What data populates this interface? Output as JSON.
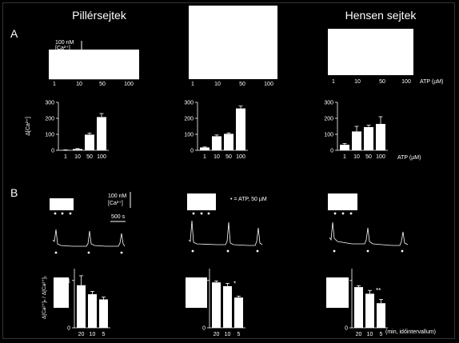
{
  "titles": {
    "col1": "Pillérsejtek",
    "col3": "Hensen sejtek"
  },
  "panels": {
    "a": "A",
    "b": "B"
  },
  "scale_a": {
    "amount": "100 nM",
    "unit": "[Ca²⁺]"
  },
  "scale_b": {
    "amount": "100 nM",
    "unit": "[Ca²⁺]",
    "time": "500 s"
  },
  "atp_note": "• = ATP, 50 µM",
  "atp_axis_label": "ATP (µM)",
  "trace_doses": [
    "1",
    "10",
    "50",
    "100"
  ],
  "ylabel_a": "Δ[Ca²⁺]",
  "ylabel_b": "Δ[Ca²⁺]ₙ / Δ[Ca²⁺]₁",
  "interval_label": "(min, időintervallum)",
  "chart_data": [
    {
      "type": "bar",
      "categories": [
        "1",
        "10",
        "50",
        "100"
      ],
      "values": [
        2,
        8,
        98,
        208
      ],
      "errors": [
        1,
        3,
        10,
        22
      ],
      "ylim": [
        0,
        300
      ],
      "yticks": [
        0,
        100,
        200,
        300
      ]
    },
    {
      "type": "bar",
      "categories": [
        "1",
        "10",
        "50",
        "100"
      ],
      "values": [
        18,
        88,
        103,
        262
      ],
      "errors": [
        3,
        8,
        6,
        15
      ],
      "ylim": [
        0,
        300
      ],
      "yticks": [
        0,
        100,
        200,
        300
      ]
    },
    {
      "type": "bar",
      "categories": [
        "1",
        "10",
        "50",
        "100"
      ],
      "values": [
        35,
        118,
        145,
        165
      ],
      "errors": [
        8,
        32,
        12,
        45
      ],
      "ylim": [
        0,
        300
      ],
      "yticks": [
        0,
        100,
        200,
        300
      ]
    },
    {
      "type": "bar",
      "categories": [
        "20",
        "10",
        "5"
      ],
      "values": [
        0.9,
        0.71,
        0.6
      ],
      "errors": [
        0.2,
        0.06,
        0.05
      ],
      "significance": [
        "",
        "",
        ""
      ],
      "ylim": [
        0,
        1.25
      ],
      "yticks": [
        0,
        1
      ]
    },
    {
      "type": "bar",
      "categories": [
        "20",
        "10",
        "5"
      ],
      "values": [
        0.96,
        0.88,
        0.64
      ],
      "errors": [
        0.03,
        0.06,
        0.03
      ],
      "significance": [
        "",
        "*",
        ""
      ],
      "ylim": [
        0,
        1.25
      ],
      "yticks": [
        0,
        1
      ]
    },
    {
      "type": "bar",
      "categories": [
        "20",
        "10",
        "5"
      ],
      "values": [
        0.86,
        0.72,
        0.52
      ],
      "errors": [
        0.03,
        0.07,
        0.08
      ],
      "significance": [
        "",
        "**",
        ""
      ],
      "ylim": [
        0,
        1.25
      ],
      "yticks": [
        0,
        1
      ]
    }
  ]
}
